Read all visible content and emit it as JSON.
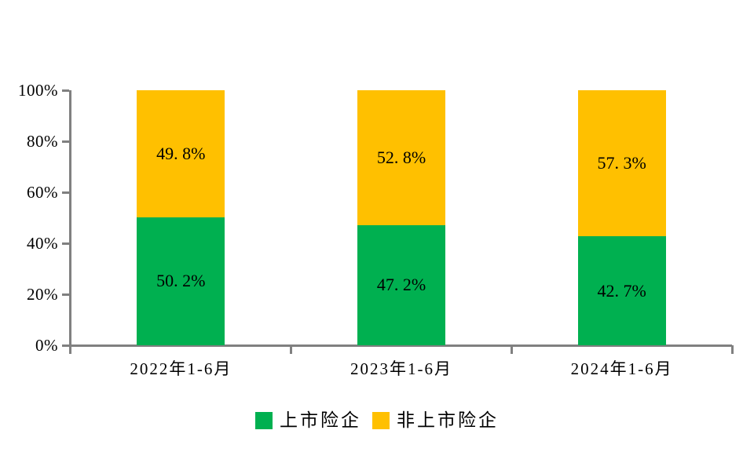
{
  "chart": {
    "background_color": "#FFFFFF"
  },
  "chart_data": {
    "type": "bar",
    "stacked": true,
    "orientation": "vertical",
    "title": "",
    "xlabel": "",
    "ylabel": "",
    "categories": [
      "2022年1-6月",
      "2023年1-6月",
      "2024年1-6月"
    ],
    "series": [
      {
        "name": "上市险企",
        "color": "#00B050",
        "values": [
          50.2,
          47.2,
          42.7
        ],
        "data_labels": [
          "50. 2%",
          "47. 2%",
          "42. 7%"
        ]
      },
      {
        "name": "非上市险企",
        "color": "#FFC000",
        "values": [
          49.8,
          52.8,
          57.3
        ],
        "data_labels": [
          "49. 8%",
          "52. 8%",
          "57. 3%"
        ]
      }
    ],
    "ylim": [
      0,
      100
    ],
    "y_ticks": [
      {
        "value": 0,
        "label": "0%"
      },
      {
        "value": 20,
        "label": "20%"
      },
      {
        "value": 40,
        "label": "40%"
      },
      {
        "value": 60,
        "label": "60%"
      },
      {
        "value": 80,
        "label": "80%"
      },
      {
        "value": 100,
        "label": "100%"
      }
    ],
    "grid": false,
    "legend_position": "bottom",
    "axis_color": "#808080",
    "data_label_color": "#000000",
    "tick_label_color": "#000000"
  }
}
